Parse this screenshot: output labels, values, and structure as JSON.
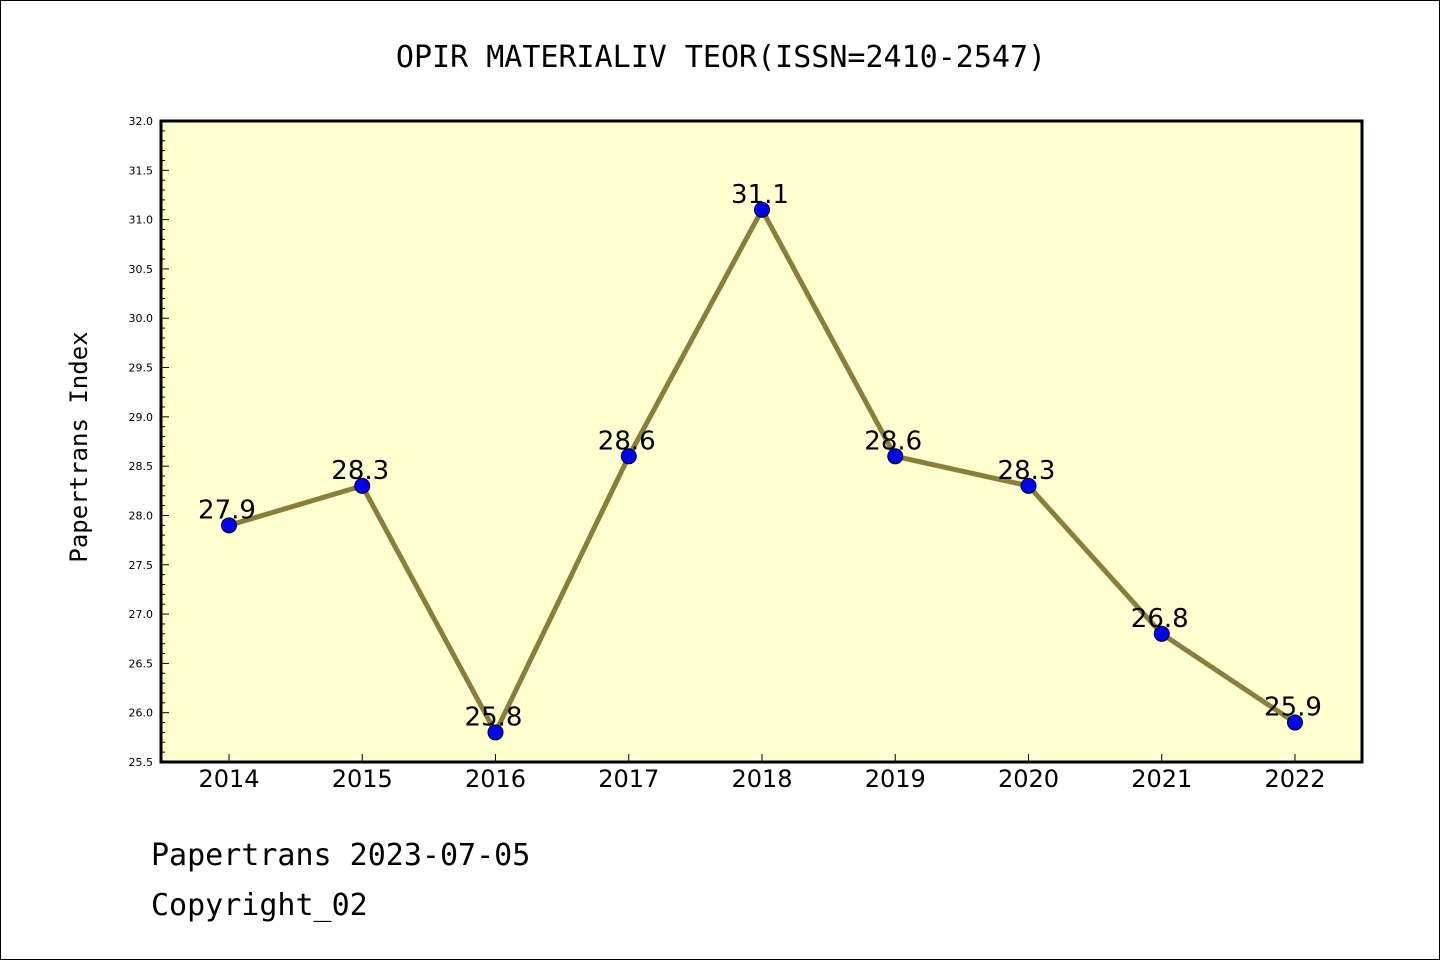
{
  "chart_data": {
    "type": "line",
    "title": "OPIR MATERIALIV TEOR(ISSN=2410-2547)",
    "xlabel": "",
    "ylabel": "Papertrans Index",
    "categories": [
      "2014",
      "2015",
      "2016",
      "2017",
      "2018",
      "2019",
      "2020",
      "2021",
      "2022"
    ],
    "values": [
      27.9,
      28.3,
      25.8,
      28.6,
      31.1,
      28.6,
      28.3,
      26.8,
      25.9
    ],
    "data_labels": [
      "27.9",
      "28.3",
      "25.8",
      "28.6",
      "31.1",
      "28.6",
      "28.3",
      "26.8",
      "25.9"
    ],
    "ylim": [
      25.5,
      32.0
    ],
    "yticks": [
      "25.5",
      "26.0",
      "26.5",
      "27.0",
      "27.5",
      "28.0",
      "28.5",
      "29.0",
      "29.5",
      "30.0",
      "30.5",
      "31.0",
      "31.5",
      "32.0"
    ],
    "grid": false,
    "colors": {
      "plot_background": "#ffffd0",
      "line": "#8b7d3a",
      "marker": "#0000ff"
    }
  },
  "footer": {
    "line1": "Papertrans 2023-07-05",
    "line2": "Copyright_02"
  }
}
